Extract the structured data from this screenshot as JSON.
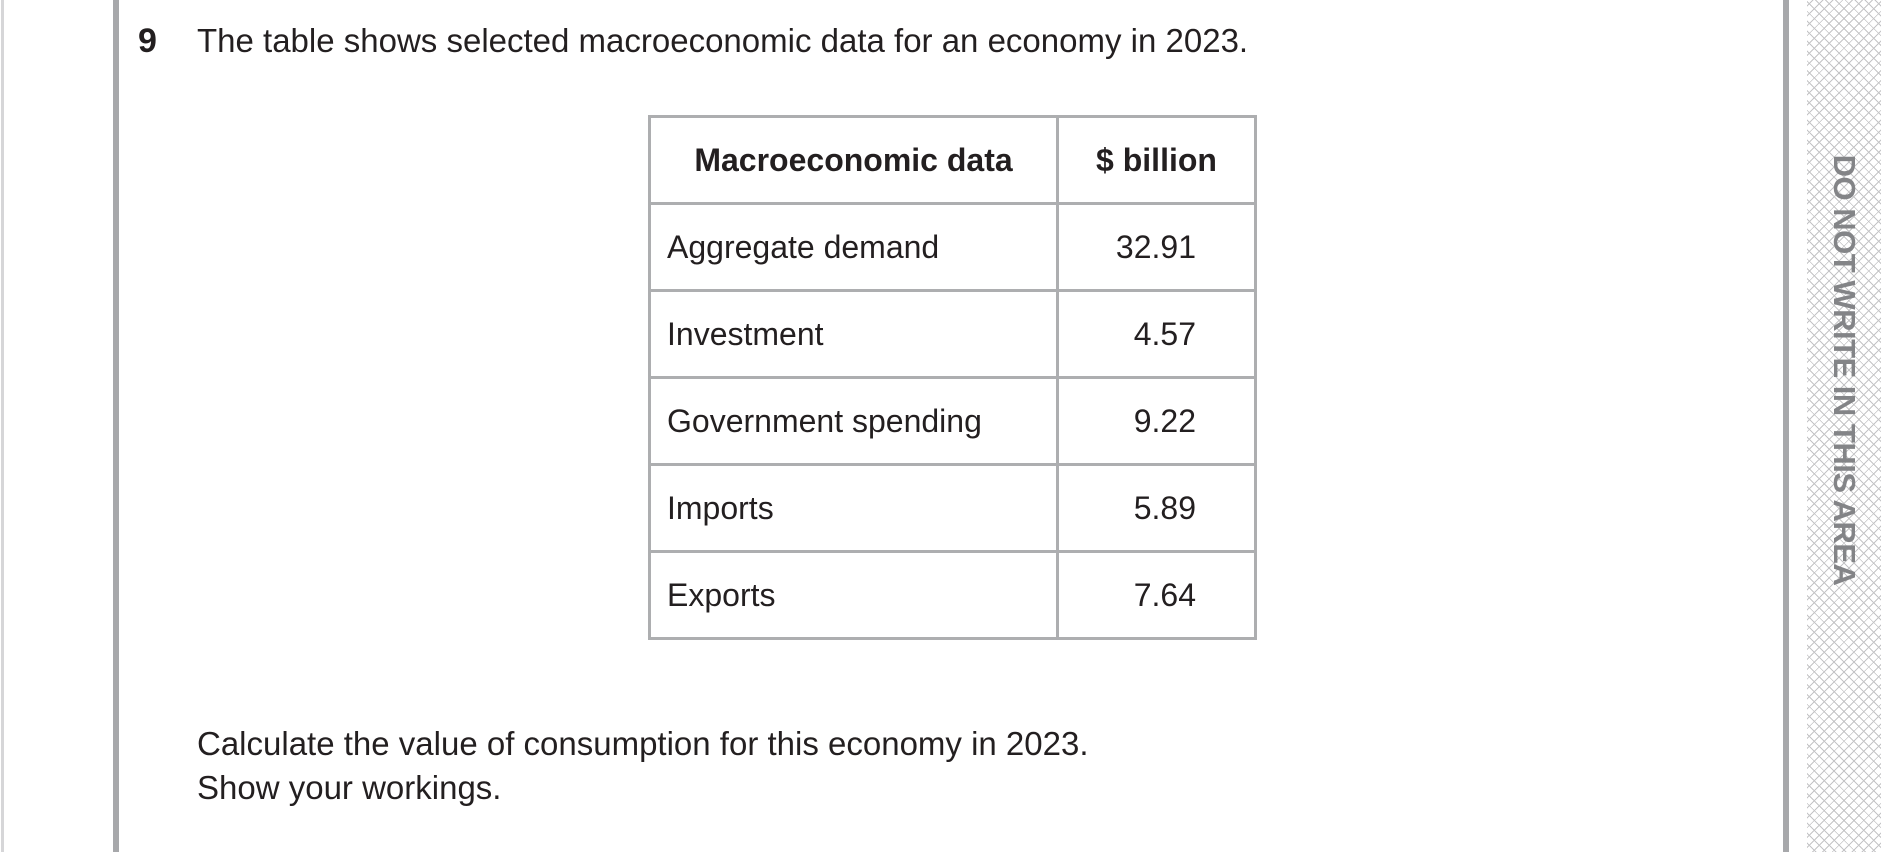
{
  "question": {
    "number": "9",
    "text": "The table shows selected macroeconomic data for an economy in 2023.",
    "instruction_lines": [
      "Calculate the value of consumption for this economy in 2023.",
      "Show your workings."
    ]
  },
  "table": {
    "headers": [
      "Macroeconomic data",
      "$ billion"
    ],
    "rows": [
      {
        "label": "Aggregate demand",
        "value": "32.91"
      },
      {
        "label": "Investment",
        "value": "4.57"
      },
      {
        "label": "Government spending",
        "value": "9.22"
      },
      {
        "label": "Imports",
        "value": "5.89"
      },
      {
        "label": "Exports",
        "value": "7.64"
      }
    ]
  },
  "margin_notice": "DO NOT WRITE IN THIS AREA"
}
